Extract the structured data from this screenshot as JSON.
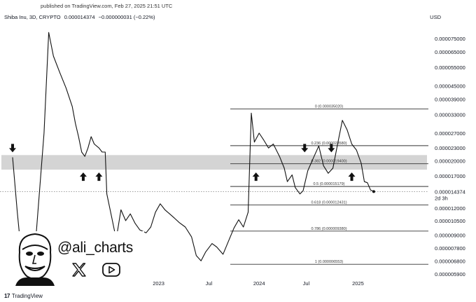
{
  "top_note": "published on TradingView.com, Feb 27, 2025 21:51 UTC",
  "legend": {
    "symbol": "Shiba Inu, 3D, CRYPTO",
    "price": "0.000014374",
    "change": "−0.000000031 (−0.22%)"
  },
  "currency": "USD",
  "footer": {
    "logo": "17",
    "brand": "TradingView"
  },
  "branding": {
    "handle": "@ali_charts",
    "icons": [
      "face-avatar-icon",
      "x-logo-icon",
      "youtube-play-icon"
    ]
  },
  "chart_data": {
    "type": "line",
    "y_scale": "log",
    "x_tick_labels": [
      "2023",
      "Jul",
      "2024",
      "Jul",
      "2025"
    ],
    "y_tick_labels": [
      "0.000075000",
      "0.000065000",
      "0.000055000",
      "0.000045000",
      "0.000039000",
      "0.000033000",
      "0.000027000",
      "0.000023000",
      "0.000020000",
      "0.000017000",
      "0.000012000",
      "0.000010500",
      "0.000009000",
      "0.000007800",
      "0.000006800",
      "0.000005900"
    ],
    "y_ticks": [
      7.5e-05,
      6.5e-05,
      5.5e-05,
      4.5e-05,
      3.9e-05,
      3.3e-05,
      2.7e-05,
      2.3e-05,
      2e-05,
      1.7e-05,
      1.2e-05,
      1.05e-05,
      9e-06,
      7.8e-06,
      6.8e-06,
      5.9e-06
    ],
    "current_price": {
      "label": "0.000014374",
      "countdown": "2d 3h",
      "value": 1.4374e-05
    },
    "support_zone": {
      "low": 1.82e-05,
      "high": 2.13e-05
    },
    "fib_levels": [
      {
        "label": "0 (0.000035020)",
        "value": 3.502e-05
      },
      {
        "label": "0.236 (0.000023580)",
        "value": 2.358e-05
      },
      {
        "label": "0.382 (0.000019400)",
        "value": 1.94e-05
      },
      {
        "label": "0.5 (0.000015179)",
        "value": 1.5179e-05
      },
      {
        "label": "0.618 (0.000012431)",
        "value": 1.2431e-05
      },
      {
        "label": "0.786 (0.000009380)",
        "value": 9.38e-06
      },
      {
        "label": "1 (0.000006553)",
        "value": 6.553e-06
      }
    ],
    "arrows": [
      {
        "dir": "down",
        "t": 0.0
      },
      {
        "dir": "up",
        "t": 0.45
      },
      {
        "dir": "up",
        "t": 0.55
      },
      {
        "dir": "up",
        "t": 1.55
      },
      {
        "dir": "down",
        "t": 1.86
      },
      {
        "dir": "down",
        "t": 2.03
      },
      {
        "dir": "up",
        "t": 2.16
      }
    ],
    "series": [
      {
        "points": [
          [
            0.0,
            2.08e-05
          ],
          [
            0.03,
            1.15e-05
          ],
          [
            0.06,
            6.8e-06
          ],
          [
            0.1,
            6.2e-06
          ],
          [
            0.15,
            9e-06
          ],
          [
            0.2,
            2.7e-05
          ],
          [
            0.23,
            8e-05
          ],
          [
            0.26,
            6.2e-05
          ],
          [
            0.3,
            5.2e-05
          ],
          [
            0.34,
            4.4e-05
          ],
          [
            0.38,
            3.6e-05
          ],
          [
            0.4,
            3e-05
          ],
          [
            0.42,
            2.6e-05
          ],
          [
            0.44,
            2.2e-05
          ],
          [
            0.46,
            2.1e-05
          ],
          [
            0.48,
            2.3e-05
          ],
          [
            0.5,
            2.6e-05
          ],
          [
            0.52,
            2.4e-05
          ],
          [
            0.55,
            2.3e-05
          ],
          [
            0.57,
            2.2e-05
          ],
          [
            0.59,
            2.2e-05
          ],
          [
            0.6,
            1.4e-05
          ],
          [
            0.63,
            1.1e-05
          ],
          [
            0.66,
            8.6e-06
          ],
          [
            0.69,
            1.18e-05
          ],
          [
            0.72,
            1.05e-05
          ],
          [
            0.75,
            1.13e-05
          ],
          [
            0.78,
            1.02e-05
          ],
          [
            0.81,
            9.5e-06
          ],
          [
            0.85,
            9.2e-06
          ],
          [
            0.88,
            9.8e-06
          ],
          [
            0.91,
            1.15e-05
          ],
          [
            0.94,
            1.26e-05
          ],
          [
            0.97,
            1.18e-05
          ],
          [
            1.0,
            1.13e-05
          ],
          [
            1.03,
            1.08e-05
          ],
          [
            1.06,
            1.03e-05
          ],
          [
            1.1,
            9.8e-06
          ],
          [
            1.14,
            8.8e-06
          ],
          [
            1.17,
            7.2e-06
          ],
          [
            1.2,
            6.8e-06
          ],
          [
            1.23,
            7.5e-06
          ],
          [
            1.27,
            8.2e-06
          ],
          [
            1.3,
            7.9e-06
          ],
          [
            1.34,
            7.3e-06
          ],
          [
            1.38,
            8.6e-06
          ],
          [
            1.41,
            9.7e-06
          ],
          [
            1.44,
            1.06e-05
          ],
          [
            1.47,
            9.8e-06
          ],
          [
            1.5,
            1.15e-05
          ],
          [
            1.52,
            3.35e-05
          ],
          [
            1.54,
            2.45e-05
          ],
          [
            1.57,
            2.7e-05
          ],
          [
            1.6,
            2.5e-05
          ],
          [
            1.63,
            2.3e-05
          ],
          [
            1.66,
            2.4e-05
          ],
          [
            1.7,
            2.1e-05
          ],
          [
            1.73,
            1.85e-05
          ],
          [
            1.75,
            1.6e-05
          ],
          [
            1.78,
            1.72e-05
          ],
          [
            1.8,
            1.5e-05
          ],
          [
            1.83,
            1.4e-05
          ],
          [
            1.85,
            1.45e-05
          ],
          [
            1.88,
            1.8e-05
          ],
          [
            1.92,
            2.1e-05
          ],
          [
            1.95,
            2.35e-05
          ],
          [
            1.98,
            1.9e-05
          ],
          [
            2.01,
            1.75e-05
          ],
          [
            2.04,
            1.85e-05
          ],
          [
            2.07,
            2.4e-05
          ],
          [
            2.1,
            3.1e-05
          ],
          [
            2.13,
            2.8e-05
          ],
          [
            2.16,
            2.4e-05
          ],
          [
            2.19,
            2.25e-05
          ],
          [
            2.22,
            1.95e-05
          ],
          [
            2.24,
            1.6e-05
          ],
          [
            2.26,
            1.58e-05
          ],
          [
            2.28,
            1.46e-05
          ],
          [
            2.3,
            1.4374e-05
          ]
        ]
      }
    ]
  }
}
